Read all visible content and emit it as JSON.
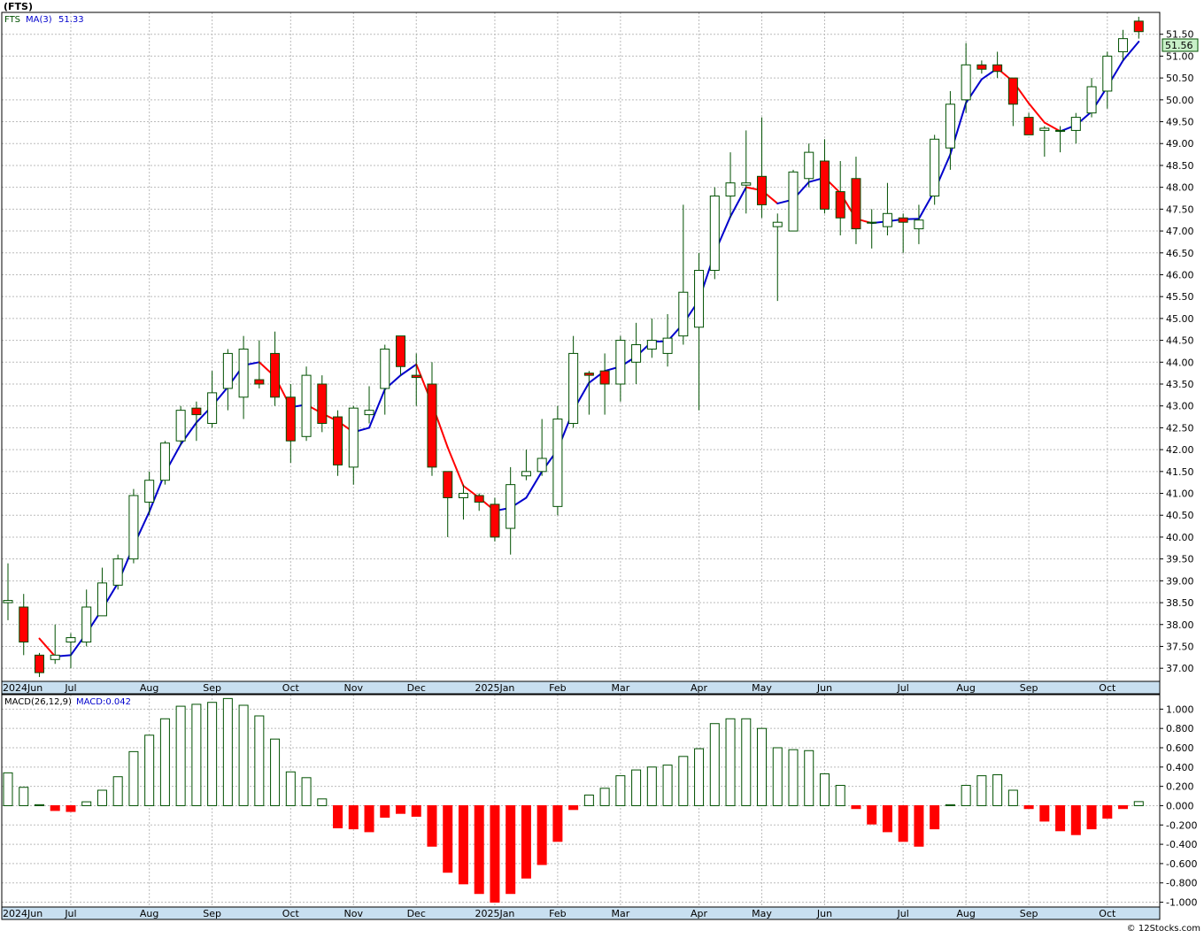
{
  "header": {
    "title": "(FTS)",
    "ticker": "FTS",
    "ma_label": "MA(3)",
    "ma_value": "51.33"
  },
  "macd_header": {
    "label": "MACD(26,12,9)",
    "value_label": "MACD:0.042"
  },
  "last_price_badge": "51.56",
  "footer": {
    "credit": "© 12Stocks.com"
  },
  "colors": {
    "up_candle": "#ffffff",
    "down_candle": "#ff0000",
    "candle_outline": "#005000",
    "ma_up": "#0000cc",
    "ma_down": "#ff0000",
    "macd_pos": "#005000",
    "macd_neg": "#ff0000",
    "axis_band": "#c8dff0",
    "grid": "#bbbbbb"
  },
  "chart_data": [
    {
      "type": "candlestick",
      "series_name": "FTS",
      "ylim": [
        36.7,
        52.0
      ],
      "y_ticks": [
        37.0,
        37.5,
        38.0,
        38.5,
        39.0,
        39.5,
        40.0,
        40.5,
        41.0,
        41.5,
        42.0,
        42.5,
        43.0,
        43.5,
        44.0,
        44.5,
        45.0,
        45.5,
        46.0,
        46.5,
        47.0,
        47.5,
        48.0,
        48.5,
        49.0,
        49.5,
        50.0,
        50.5,
        51.0,
        51.5
      ],
      "y_tick_labels": [
        "37.00",
        "37.50",
        "38.00",
        "38.50",
        "39.00",
        "39.50",
        "40.00",
        "40.50",
        "41.00",
        "41.50",
        "42.00",
        "42.50",
        "43.00",
        "43.50",
        "44.00",
        "44.50",
        "45.00",
        "45.50",
        "46.00",
        "46.50",
        "47.00",
        "47.50",
        "48.00",
        "48.50",
        "49.00",
        "49.50",
        "50.00",
        "50.50",
        "51.00",
        "51.50"
      ],
      "x_ticks": [
        {
          "index": 0,
          "label": "2024Jun"
        },
        {
          "index": 4,
          "label": "Jul"
        },
        {
          "index": 9,
          "label": "Aug"
        },
        {
          "index": 13,
          "label": "Sep"
        },
        {
          "index": 18,
          "label": "Oct"
        },
        {
          "index": 22,
          "label": "Nov"
        },
        {
          "index": 26,
          "label": "Dec"
        },
        {
          "index": 31,
          "label": "2025Jan"
        },
        {
          "index": 35,
          "label": "Feb"
        },
        {
          "index": 39,
          "label": "Mar"
        },
        {
          "index": 44,
          "label": "Apr"
        },
        {
          "index": 48,
          "label": "May"
        },
        {
          "index": 52,
          "label": "Jun"
        },
        {
          "index": 57,
          "label": "Jul"
        },
        {
          "index": 61,
          "label": "Aug"
        },
        {
          "index": 65,
          "label": "Sep"
        },
        {
          "index": 70,
          "label": "Oct"
        }
      ],
      "candles": [
        [
          38.5,
          39.4,
          38.1,
          38.55
        ],
        [
          38.4,
          38.7,
          37.3,
          37.6
        ],
        [
          37.3,
          37.35,
          36.8,
          36.9
        ],
        [
          37.2,
          38.0,
          37.1,
          37.3
        ],
        [
          37.6,
          37.8,
          37.0,
          37.7
        ],
        [
          37.6,
          38.8,
          37.5,
          38.4
        ],
        [
          38.2,
          39.3,
          38.2,
          38.95
        ],
        [
          38.9,
          39.6,
          38.8,
          39.5
        ],
        [
          39.5,
          41.1,
          39.4,
          40.95
        ],
        [
          40.8,
          41.5,
          40.5,
          41.3
        ],
        [
          41.3,
          42.2,
          41.2,
          42.15
        ],
        [
          42.2,
          43.0,
          42.1,
          42.9
        ],
        [
          42.95,
          43.1,
          42.2,
          42.8
        ],
        [
          42.6,
          43.8,
          42.5,
          43.3
        ],
        [
          43.4,
          44.3,
          42.9,
          44.2
        ],
        [
          43.2,
          44.6,
          42.7,
          44.3
        ],
        [
          43.6,
          44.5,
          43.4,
          43.5
        ],
        [
          44.2,
          44.7,
          43.0,
          43.2
        ],
        [
          43.2,
          43.5,
          41.7,
          42.2
        ],
        [
          42.3,
          43.9,
          42.2,
          43.7
        ],
        [
          43.5,
          43.7,
          42.4,
          42.6
        ],
        [
          42.75,
          42.9,
          41.4,
          41.65
        ],
        [
          41.6,
          43.0,
          41.2,
          42.95
        ],
        [
          42.8,
          43.45,
          42.6,
          42.9
        ],
        [
          43.4,
          44.4,
          42.8,
          44.3
        ],
        [
          44.6,
          44.6,
          43.7,
          43.9
        ],
        [
          43.7,
          44.2,
          43.0,
          43.65
        ],
        [
          43.5,
          44.0,
          41.4,
          41.6
        ],
        [
          41.5,
          41.5,
          40.0,
          40.9
        ],
        [
          40.9,
          41.2,
          40.4,
          41.0
        ],
        [
          40.95,
          41.0,
          40.6,
          40.8
        ],
        [
          40.75,
          40.9,
          39.9,
          40.0
        ],
        [
          40.2,
          41.6,
          39.6,
          41.2
        ],
        [
          41.4,
          42.0,
          41.3,
          41.5
        ],
        [
          41.5,
          42.7,
          41.4,
          41.8
        ],
        [
          40.7,
          43.0,
          40.5,
          42.7
        ],
        [
          42.6,
          44.6,
          42.5,
          44.2
        ],
        [
          43.75,
          43.8,
          42.8,
          43.7
        ],
        [
          43.8,
          44.2,
          42.8,
          43.5
        ],
        [
          43.5,
          44.6,
          43.1,
          44.5
        ],
        [
          44.0,
          44.9,
          43.5,
          44.4
        ],
        [
          44.3,
          45.0,
          44.1,
          44.5
        ],
        [
          44.2,
          45.1,
          43.9,
          44.55
        ],
        [
          44.6,
          47.6,
          44.4,
          45.6
        ],
        [
          44.8,
          46.5,
          42.9,
          46.1
        ],
        [
          46.1,
          48.0,
          45.9,
          47.8
        ],
        [
          47.8,
          48.8,
          47.3,
          48.1
        ],
        [
          48.05,
          49.3,
          47.4,
          48.1
        ],
        [
          48.25,
          49.6,
          47.3,
          47.6
        ],
        [
          47.1,
          47.4,
          45.4,
          47.2
        ],
        [
          47.0,
          48.4,
          47.0,
          48.35
        ],
        [
          48.2,
          49.0,
          48.0,
          48.8
        ],
        [
          48.6,
          49.1,
          47.4,
          47.5
        ],
        [
          47.9,
          48.6,
          46.9,
          47.3
        ],
        [
          48.2,
          48.7,
          46.7,
          47.05
        ],
        [
          47.2,
          47.5,
          46.6,
          47.2
        ],
        [
          47.1,
          48.1,
          46.9,
          47.4
        ],
        [
          47.3,
          47.4,
          46.5,
          47.2
        ],
        [
          47.05,
          47.6,
          46.7,
          47.25
        ],
        [
          47.8,
          49.2,
          47.6,
          49.1
        ],
        [
          48.9,
          50.2,
          48.4,
          49.9
        ],
        [
          50.0,
          51.3,
          49.7,
          50.8
        ],
        [
          50.8,
          50.9,
          50.6,
          50.7
        ],
        [
          50.8,
          51.1,
          50.5,
          50.65
        ],
        [
          50.5,
          50.5,
          49.4,
          49.9
        ],
        [
          49.6,
          49.7,
          49.2,
          49.2
        ],
        [
          49.3,
          49.4,
          48.7,
          49.35
        ],
        [
          49.3,
          49.4,
          48.8,
          49.3
        ],
        [
          49.3,
          49.7,
          49.0,
          49.6
        ],
        [
          49.7,
          50.5,
          49.6,
          50.3
        ],
        [
          50.2,
          51.1,
          49.8,
          51.0
        ],
        [
          51.1,
          51.6,
          50.9,
          51.4
        ],
        [
          51.8,
          51.9,
          51.4,
          51.56
        ]
      ],
      "ma_label": "MA(3)",
      "ma": [
        null,
        null,
        37.68,
        37.27,
        37.3,
        37.8,
        38.35,
        38.95,
        39.8,
        40.58,
        41.47,
        42.12,
        42.62,
        43.0,
        43.43,
        43.93,
        44.0,
        43.67,
        42.97,
        43.03,
        42.83,
        42.65,
        42.4,
        42.5,
        43.38,
        43.7,
        43.95,
        43.05,
        42.05,
        41.17,
        40.9,
        40.6,
        40.67,
        40.9,
        41.5,
        42.0,
        42.9,
        43.53,
        43.8,
        43.9,
        44.13,
        44.47,
        44.48,
        44.88,
        45.42,
        46.5,
        47.33,
        48.0,
        47.93,
        47.63,
        47.72,
        48.12,
        48.22,
        47.87,
        47.28,
        47.18,
        47.22,
        47.27,
        47.28,
        47.92,
        48.75,
        49.93,
        50.47,
        50.72,
        50.42,
        49.92,
        49.48,
        49.28,
        49.42,
        49.73,
        50.3,
        50.9,
        51.33
      ]
    },
    {
      "type": "bar",
      "series_name": "MACD(26,12,9)",
      "ylim": [
        -1.05,
        1.15
      ],
      "y_ticks": [
        -1.0,
        -0.8,
        -0.6,
        -0.4,
        -0.2,
        0.0,
        0.2,
        0.4,
        0.6,
        0.8,
        1.0
      ],
      "y_tick_labels": [
        "-1.000",
        "-0.800",
        "-0.600",
        "-0.400",
        "-0.200",
        "0.000",
        "0.200",
        "0.400",
        "0.600",
        "0.800",
        "1.000"
      ],
      "x_ticks": [
        {
          "index": 0,
          "label": "2024Jun"
        },
        {
          "index": 4,
          "label": "Jul"
        },
        {
          "index": 9,
          "label": "Aug"
        },
        {
          "index": 13,
          "label": "Sep"
        },
        {
          "index": 18,
          "label": "Oct"
        },
        {
          "index": 22,
          "label": "Nov"
        },
        {
          "index": 26,
          "label": "Dec"
        },
        {
          "index": 31,
          "label": "2025Jan"
        },
        {
          "index": 35,
          "label": "Feb"
        },
        {
          "index": 39,
          "label": "Mar"
        },
        {
          "index": 44,
          "label": "Apr"
        },
        {
          "index": 48,
          "label": "May"
        },
        {
          "index": 52,
          "label": "Jun"
        },
        {
          "index": 57,
          "label": "Jul"
        },
        {
          "index": 61,
          "label": "Aug"
        },
        {
          "index": 65,
          "label": "Sep"
        },
        {
          "index": 70,
          "label": "Oct"
        }
      ],
      "values": [
        0.34,
        0.19,
        0.01,
        -0.05,
        -0.06,
        0.04,
        0.16,
        0.3,
        0.56,
        0.73,
        0.9,
        1.03,
        1.05,
        1.07,
        1.11,
        1.04,
        0.93,
        0.69,
        0.35,
        0.29,
        0.07,
        -0.23,
        -0.24,
        -0.27,
        -0.12,
        -0.08,
        -0.11,
        -0.42,
        -0.69,
        -0.81,
        -0.91,
        -1.0,
        -0.91,
        -0.75,
        -0.61,
        -0.37,
        -0.04,
        0.11,
        0.18,
        0.31,
        0.37,
        0.4,
        0.42,
        0.51,
        0.59,
        0.85,
        0.9,
        0.9,
        0.8,
        0.6,
        0.58,
        0.57,
        0.33,
        0.21,
        -0.03,
        -0.19,
        -0.27,
        -0.37,
        -0.42,
        -0.24,
        0.01,
        0.21,
        0.31,
        0.32,
        0.16,
        -0.03,
        -0.16,
        -0.26,
        -0.3,
        -0.24,
        -0.13,
        -0.03,
        0.042
      ]
    }
  ]
}
